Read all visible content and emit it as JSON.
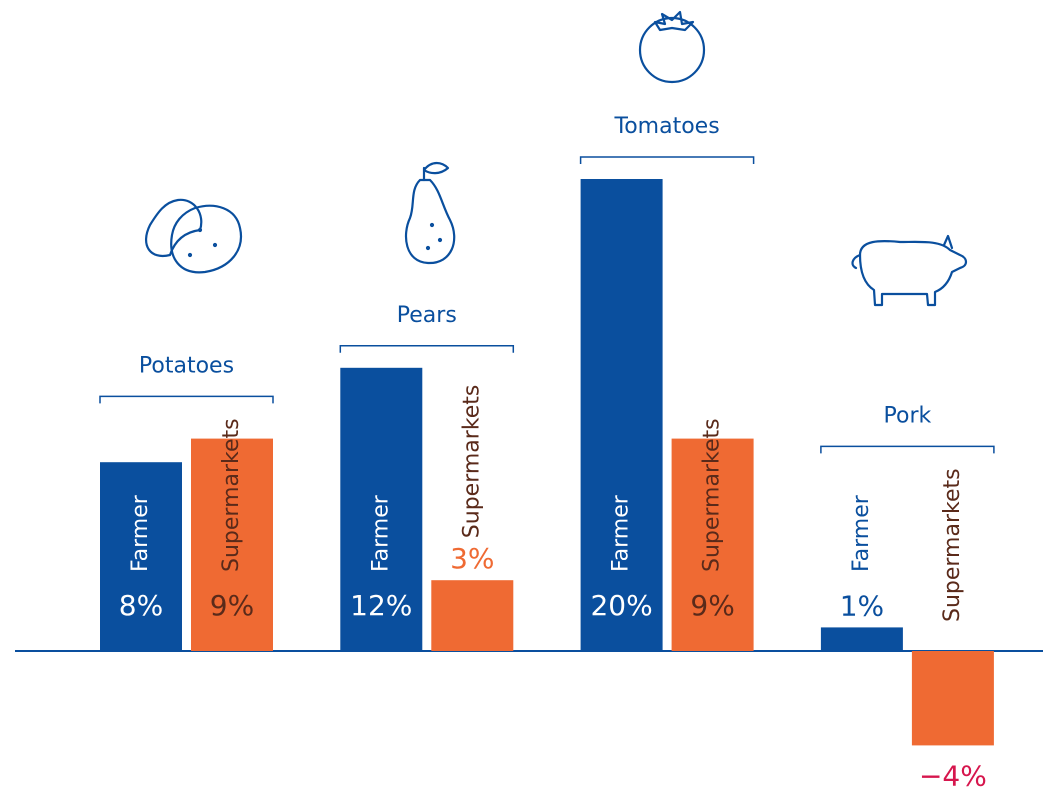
{
  "chart_data": {
    "type": "bar",
    "categories": [
      "Potatoes",
      "Pears",
      "Tomatoes",
      "Pork"
    ],
    "series": [
      {
        "name": "Farmer",
        "color": "#0a4f9e",
        "values": [
          8,
          12,
          20,
          1
        ],
        "value_labels": [
          "8%",
          "12%",
          "20%",
          "1%"
        ]
      },
      {
        "name": "Supermarkets",
        "color": "#ef6a33",
        "values": [
          9,
          3,
          9,
          -4
        ],
        "value_labels": [
          "9%",
          "3%",
          "9%",
          "−4%"
        ]
      }
    ]
  }
}
